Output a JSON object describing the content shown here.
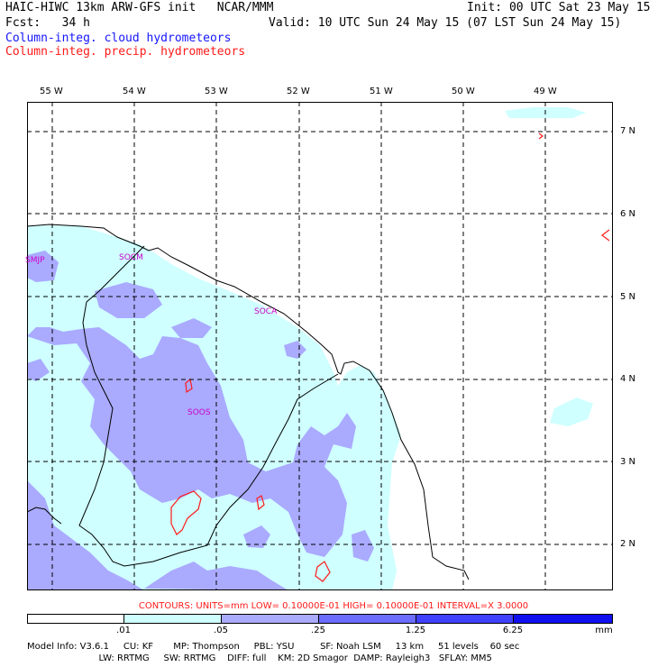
{
  "header": {
    "model_title": "HAIC-HIWC 13km ARW-GFS init   NCAR/MMM",
    "init": "Init: 00 UTC Sat 23 May 15",
    "fcst": "Fcst:   34 h",
    "valid": "Valid: 10 UTC Sun 24 May 15 (07 LST Sun 24 May 15)",
    "field_cloud": "Column-integ. cloud hydrometeors",
    "field_precip": "Column-integ. precip. hydrometeors"
  },
  "map": {
    "lon_labels": [
      "55 W",
      "54 W",
      "53 W",
      "52 W",
      "51 W",
      "50 W",
      "49 W"
    ],
    "lat_labels": [
      "7 N",
      "6 N",
      "5 N",
      "4 N",
      "3 N",
      "2 N"
    ],
    "stations": [
      "SMJP",
      "SOCM",
      "SOCA",
      "SOOS"
    ]
  },
  "contours_text": "CONTOURS:  UNITS=mm   LOW= 0.10000E-01   HIGH= 0.10000E-01   INTERVAL=X   3.0000",
  "colorbar": {
    "labels": [
      ".01",
      ".05",
      ".25",
      "1.25",
      "6.25"
    ],
    "units": "mm",
    "colors": [
      "#ffffff",
      "#cfffff",
      "#aaaaff",
      "#6c6cff",
      "#4040ff",
      "#1010ee"
    ]
  },
  "model_info": {
    "line1": "Model Info: V3.6.1     CU: KF       MP: Thompson     PBL: YSU         SF: Noah LSM     13 km     51 levels    60 sec",
    "line2": "                         LW: RRTMG     SW: RRTMG    DIFF: full    KM: 2D Smagor  DAMP: Rayleigh3   SFLAY: MM5"
  }
}
